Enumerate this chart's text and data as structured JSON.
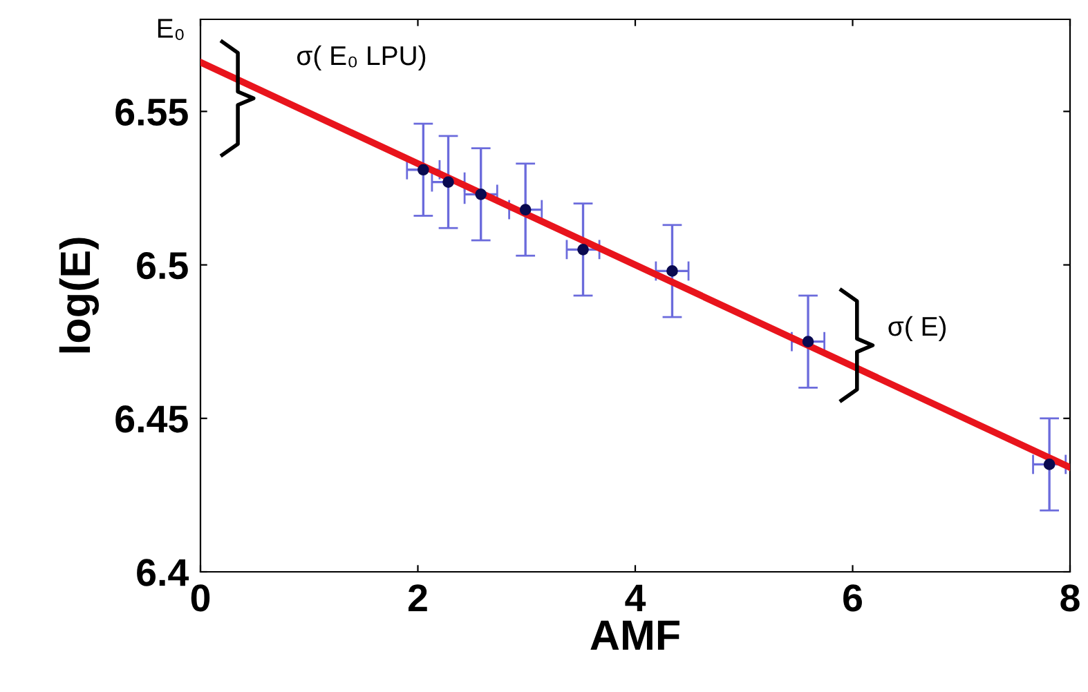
{
  "chart_data": {
    "type": "scatter",
    "xlabel": "AMF",
    "ylabel": "log(E)",
    "xlim": [
      0,
      8
    ],
    "ylim": [
      6.4,
      6.58
    ],
    "xticks": [
      0,
      2,
      4,
      6,
      8
    ],
    "yticks": [
      6.4,
      6.45,
      6.5,
      6.55
    ],
    "grid": false,
    "legend": false,
    "series": [
      {
        "color": "#0a0a50",
        "marker": "circle",
        "x": [
          2.05,
          2.28,
          2.58,
          2.99,
          3.52,
          4.34,
          5.59,
          7.81
        ],
        "values": [
          6.531,
          6.527,
          6.523,
          6.518,
          6.505,
          6.498,
          6.475,
          6.435
        ],
        "errors": [
          0.015,
          0.015,
          0.015,
          0.015,
          0.015,
          0.015,
          0.015,
          0.015
        ],
        "xerrors": [
          0.15,
          0.15,
          0.15,
          0.15,
          0.15,
          0.15,
          0.15,
          0.15
        ]
      },
      {
        "type": "line",
        "color": "#e8141c",
        "x": [
          0,
          8
        ],
        "values": [
          6.566,
          6.434
        ]
      }
    ],
    "annotations": [
      {
        "text": "E₀",
        "x": 0,
        "y": 6.566
      },
      "σ( E₀ LPU)",
      "σ( E)"
    ]
  }
}
